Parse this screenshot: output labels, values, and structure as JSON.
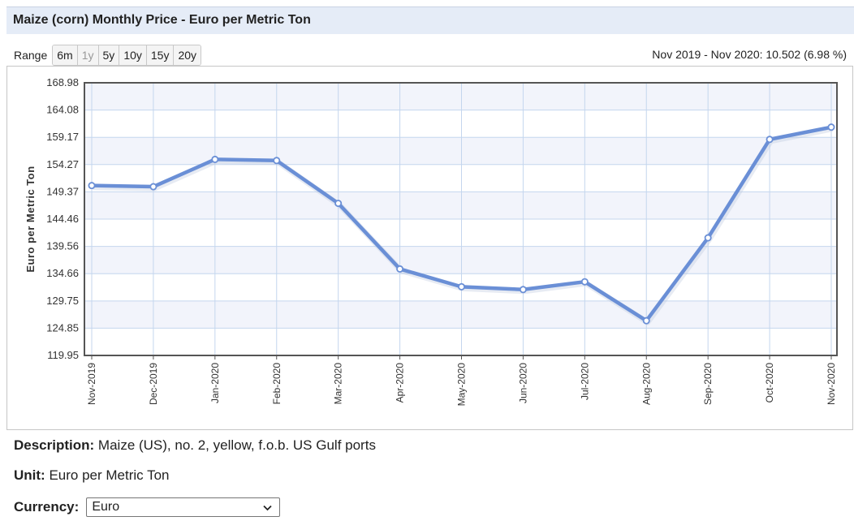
{
  "header": {
    "title": "Maize (corn) Monthly Price - Euro per Metric Ton"
  },
  "range": {
    "label": "Range",
    "buttons": [
      {
        "label": "6m",
        "disabled": false
      },
      {
        "label": "1y",
        "disabled": true
      },
      {
        "label": "5y",
        "disabled": false
      },
      {
        "label": "10y",
        "disabled": false
      },
      {
        "label": "15y",
        "disabled": false
      },
      {
        "label": "20y",
        "disabled": false
      }
    ]
  },
  "change_summary": "Nov 2019 - Nov 2020: 10.502 (6.98 %)",
  "chart_data": {
    "type": "line",
    "title": "",
    "xlabel": "",
    "ylabel": "Euro per Metric Ton",
    "categories": [
      "Nov-2019",
      "Dec-2019",
      "Jan-2020",
      "Feb-2020",
      "Mar-2020",
      "Apr-2020",
      "May-2020",
      "Jun-2020",
      "Jul-2020",
      "Aug-2020",
      "Sep-2020",
      "Oct-2020",
      "Nov-2020"
    ],
    "series": [
      {
        "values": [
          150.5,
          150.3,
          155.2,
          155.0,
          147.3,
          135.5,
          132.3,
          131.8,
          133.2,
          126.2,
          141.1,
          158.8,
          161.0
        ]
      }
    ],
    "yticks": [
      "119.95",
      "124.85",
      "129.75",
      "134.66",
      "139.56",
      "144.46",
      "149.37",
      "154.27",
      "159.17",
      "164.08",
      "168.98"
    ],
    "ylim": [
      119.95,
      168.98
    ],
    "grid": true,
    "line_color": "#6a8fd6",
    "band_color": "#f2f4fb",
    "grid_color": "#c4d6ee"
  },
  "description": {
    "label": "Description:",
    "value": "Maize (US), no. 2, yellow, f.o.b. US Gulf ports"
  },
  "unit": {
    "label": "Unit:",
    "value": "Euro per Metric Ton"
  },
  "currency": {
    "label": "Currency:",
    "selected": "Euro"
  }
}
